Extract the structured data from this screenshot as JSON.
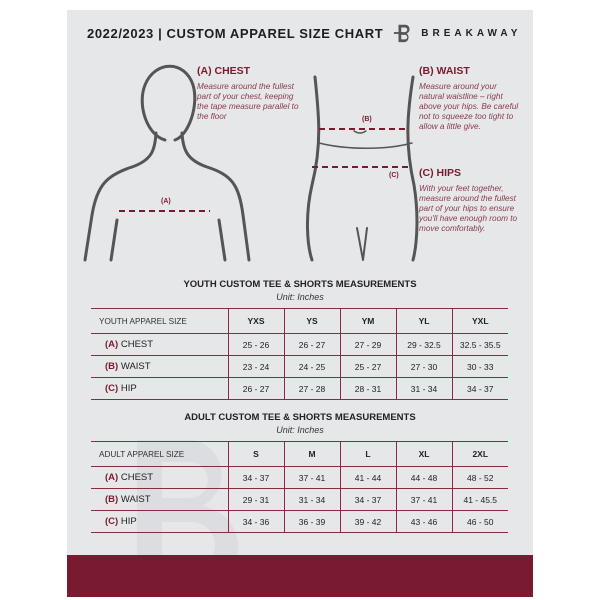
{
  "header": {
    "title": "2022/2023  |  CUSTOM APPAREL SIZE CHART",
    "brand": "BREAKAWAY"
  },
  "guides": {
    "chest": {
      "heading": "(A) CHEST",
      "marker": "(A)",
      "text": "Measure around the fullest part of your chest, keeping the tape measure parallel to the floor"
    },
    "waist": {
      "heading": "(B) WAIST",
      "marker": "(B)",
      "text": "Measure around your natural waistline – right above your hips. Be careful not to squeeze too tight to allow a little give."
    },
    "hips": {
      "heading": "(C) HIPS",
      "marker": "(C)",
      "text": "With your feet together, measure around the fullest part of your hips to ensure you'll have enough room to move comfortably."
    }
  },
  "youth": {
    "title": "YOUTH CUSTOM TEE & SHORTS MEASUREMENTS",
    "unit": "Unit: Inches",
    "header": "YOUTH APPAREL SIZE",
    "sizes": [
      "YXS",
      "YS",
      "YM",
      "YL",
      "YXL"
    ],
    "rows": [
      {
        "code": "(A)",
        "name": "CHEST",
        "values": [
          "25 - 26",
          "26 - 27",
          "27 - 29",
          "29 - 32.5",
          "32.5 - 35.5"
        ]
      },
      {
        "code": "(B)",
        "name": "WAIST",
        "values": [
          "23 - 24",
          "24 - 25",
          "25 - 27",
          "27 - 30",
          "30 - 33"
        ]
      },
      {
        "code": "(C)",
        "name": "HIP",
        "values": [
          "26 - 27",
          "27 - 28",
          "28 - 31",
          "31 - 34",
          "34 - 37"
        ]
      }
    ]
  },
  "adult": {
    "title": "ADULT CUSTOM TEE & SHORTS MEASUREMENTS",
    "unit": "Unit: Inches",
    "header": "ADULT APPAREL SIZE",
    "sizes": [
      "S",
      "M",
      "L",
      "XL",
      "2XL"
    ],
    "rows": [
      {
        "code": "(A)",
        "name": "CHEST",
        "values": [
          "34 - 37",
          "37 - 41",
          "41 - 44",
          "44 - 48",
          "48 - 52"
        ]
      },
      {
        "code": "(B)",
        "name": "WAIST",
        "values": [
          "29 - 31",
          "31 - 34",
          "34 - 37",
          "37 - 41",
          "41 - 45.5"
        ]
      },
      {
        "code": "(C)",
        "name": "HIP",
        "values": [
          "34 - 36",
          "36 - 39",
          "39 - 42",
          "43 - 46",
          "46 - 50"
        ]
      }
    ]
  },
  "colors": {
    "accent": "#7a1a30",
    "background": "#e6e7e9"
  }
}
